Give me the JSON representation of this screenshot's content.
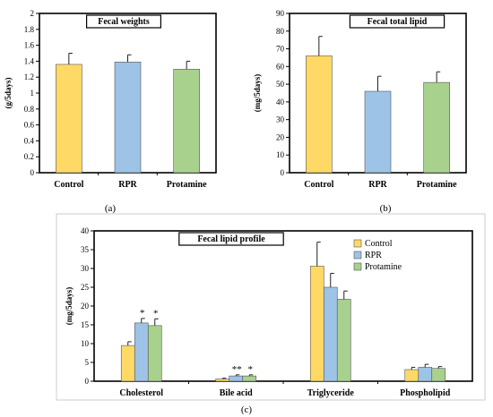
{
  "colors": {
    "Control": "#FFD966",
    "RPR": "#9DC3E6",
    "Protamine": "#A9D18E",
    "bar_edge": "#555555",
    "axis": "#000000"
  },
  "chart_data": [
    {
      "type": "bar",
      "panel_label": "(a)",
      "title": "Fecal weights",
      "ylabel": "(g/5days)",
      "ylim": [
        0,
        2
      ],
      "yticks": [
        "0",
        "0.2",
        "0.4",
        "0.6",
        "0.8",
        "1",
        "1.2",
        "1.4",
        "1.6",
        "1.8",
        "2"
      ],
      "categories": [
        "Control",
        "RPR",
        "Protamine"
      ],
      "values": [
        1.36,
        1.39,
        1.3
      ],
      "errors": [
        0.14,
        0.09,
        0.1
      ],
      "bar_colors": [
        "#FFD966",
        "#9DC3E6",
        "#A9D18E"
      ],
      "grid": false
    },
    {
      "type": "bar",
      "panel_label": "(b)",
      "title": "Fecal total lipid",
      "ylabel": "(mg/5days)",
      "ylim": [
        0,
        90
      ],
      "yticks": [
        "0",
        "10",
        "20",
        "30",
        "40",
        "50",
        "60",
        "70",
        "80",
        "90"
      ],
      "categories": [
        "Control",
        "RPR",
        "Protamine"
      ],
      "values": [
        66,
        46,
        51
      ],
      "errors": [
        11,
        8.5,
        6
      ],
      "bar_colors": [
        "#FFD966",
        "#9DC3E6",
        "#A9D18E"
      ],
      "grid": false
    },
    {
      "type": "bar",
      "panel_label": "(c)",
      "title": "Fecal lipid profile",
      "ylabel": "(mg/5days)",
      "ylim": [
        0,
        40
      ],
      "yticks": [
        "0",
        "5",
        "10",
        "15",
        "20",
        "25",
        "30",
        "35",
        "40"
      ],
      "categories": [
        "Cholesterol",
        "Bile acid",
        "Triglyceride",
        "Phospholipid"
      ],
      "series": [
        {
          "name": "Control",
          "color": "#FFD966",
          "values": [
            9.5,
            0.6,
            30.6,
            3.1
          ],
          "errors": [
            1.0,
            0.2,
            6.4,
            0.6
          ]
        },
        {
          "name": "RPR",
          "color": "#9DC3E6",
          "values": [
            15.5,
            1.4,
            25.0,
            3.7
          ],
          "errors": [
            1.2,
            0.3,
            3.7,
            0.8
          ]
        },
        {
          "name": "Protamine",
          "color": "#A9D18E",
          "values": [
            14.8,
            1.4,
            21.8,
            3.4
          ],
          "errors": [
            1.8,
            0.3,
            2.2,
            0.5
          ]
        }
      ],
      "annotations": [
        {
          "series": "RPR",
          "category": "Cholesterol",
          "text": "*"
        },
        {
          "series": "Protamine",
          "category": "Cholesterol",
          "text": "*"
        },
        {
          "series": "RPR",
          "category": "Bile acid",
          "text": "**"
        },
        {
          "series": "Protamine",
          "category": "Bile acid",
          "text": "*"
        }
      ],
      "legend": "top-right",
      "grid": false
    }
  ]
}
